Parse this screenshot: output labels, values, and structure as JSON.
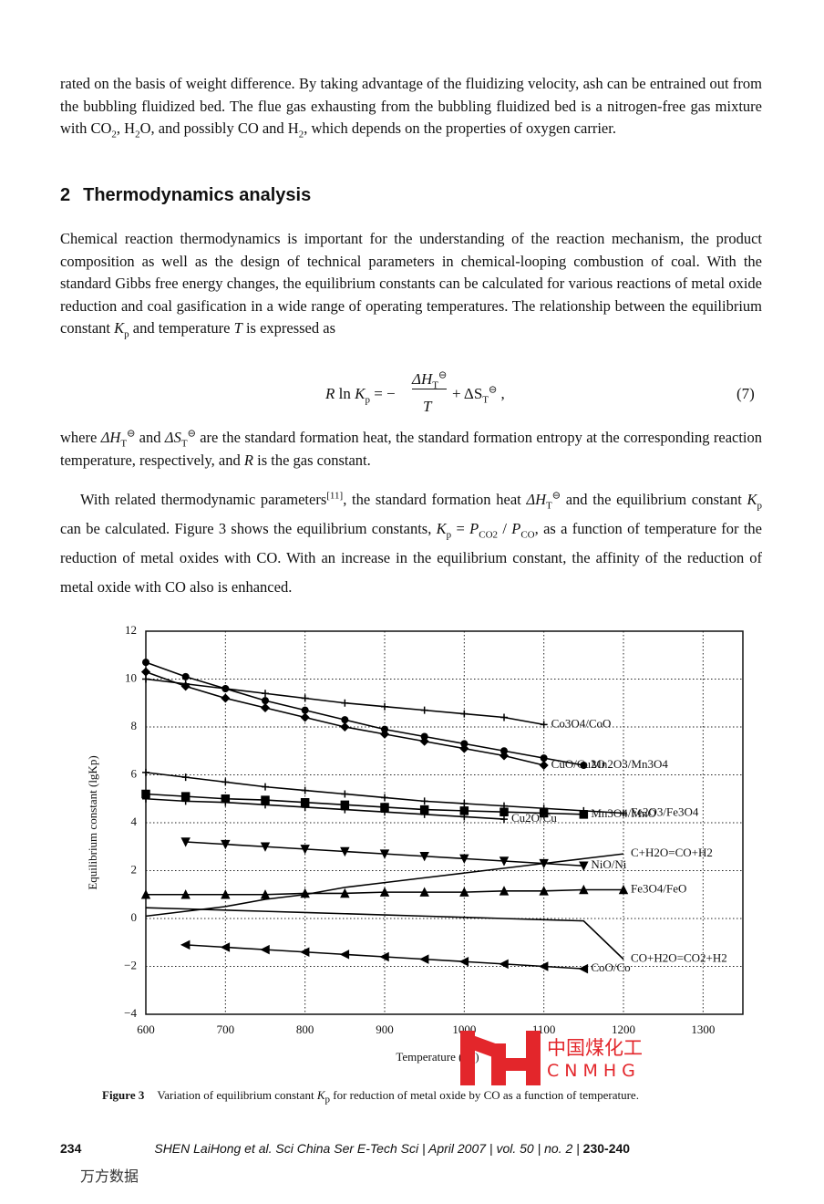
{
  "intro": [
    "rated on the basis of weight difference. By taking advantage of the fluidizing velocity, ash can be entrained out from the bubbling fluidized bed. The flue gas exhausting from the bubbling fluidized bed is a nitrogen-free gas mixture with CO",
    "2",
    ", H",
    "2",
    "O, and possibly CO and H",
    "2",
    ", which depends on the properties of oxygen carrier."
  ],
  "heading": {
    "number": "2",
    "title": "Thermodynamics analysis"
  },
  "p2": [
    "Chemical reaction thermodynamics is important for the understanding of the reaction mechanism, the product composition as well as the design of technical parameters in chemical-looping combustion of coal. With the standard Gibbs free energy changes, the equilibrium constants can be calculated for various reactions of metal oxide reduction and coal gasification in a wide range of operating temperatures. The relationship between the equilibrium constant ",
    "K",
    "p",
    " and temperature ",
    "T",
    " is expressed as"
  ],
  "equation": [
    "R",
    " ln ",
    "K",
    "p",
    " = −",
    "ΔH",
    "T",
    "⊖",
    "T",
    " + ΔS",
    "T",
    "⊖",
    " ,",
    "(7)"
  ],
  "p3": [
    "where ",
    "ΔH",
    "T",
    "⊖",
    " and ",
    "ΔS",
    "T",
    "⊖",
    " are the standard formation heat, the standard formation entropy at the corresponding reaction temperature, respectively, and ",
    "R",
    " is the gas constant."
  ],
  "p4": [
    "With related thermodynamic parameters",
    "[11]",
    ", the standard formation heat ",
    "ΔH",
    "T",
    "⊖",
    " and the equilibrium constant ",
    "K",
    "p",
    " can be calculated. Figure 3 shows the equilibrium constants, ",
    "K",
    "p",
    " = ",
    "P",
    "CO2",
    " / ",
    "P",
    "CO",
    ", as a function of temperature for the reduction of metal oxides with CO. With an increase in the equilibrium constant, the affinity of the reduction of metal oxide with CO also is enhanced."
  ],
  "chart_data": {
    "type": "line",
    "x_label": "Temperature (°C)",
    "y_label": "Equilibrium constant (lgKp)",
    "x": [
      600,
      650,
      700,
      750,
      800,
      850,
      900,
      950,
      1000,
      1050,
      1100,
      1150,
      1200
    ],
    "xlim": [
      600,
      1350
    ],
    "ylim": [
      -4,
      12
    ],
    "xticks": [
      600,
      700,
      800,
      900,
      1000,
      1100,
      1200,
      1300
    ],
    "yticks": [
      {
        "value": -4,
        "label": "−4"
      },
      {
        "value": -2,
        "label": "−2"
      },
      0,
      2,
      4,
      6,
      8,
      10,
      12
    ],
    "grid": true,
    "series": [
      {
        "name": "Co3O4/CoO",
        "color": "#000000",
        "marker": "+",
        "values": [
          10.0,
          9.8,
          9.6,
          9.4,
          9.2,
          9.0,
          8.85,
          8.7,
          8.55,
          8.4,
          8.1,
          null,
          null
        ]
      },
      {
        "name": "Mn2O3/Mn3O4",
        "color": "#000000",
        "marker": "o",
        "values": [
          10.7,
          10.1,
          9.6,
          9.1,
          8.7,
          8.3,
          7.9,
          7.6,
          7.3,
          7.0,
          6.7,
          6.4,
          null
        ]
      },
      {
        "name": "CuO/Cu2O",
        "color": "#000000",
        "marker": "d",
        "values": [
          10.3,
          9.7,
          9.2,
          8.8,
          8.4,
          8.0,
          7.7,
          7.4,
          7.1,
          6.8,
          6.4,
          null,
          null
        ]
      },
      {
        "name": "Fe2O3/Fe3O4",
        "color": "#000000",
        "marker": "+",
        "values": [
          6.1,
          5.9,
          5.7,
          5.5,
          5.35,
          5.2,
          5.05,
          4.9,
          4.8,
          4.7,
          4.6,
          4.5,
          4.4
        ]
      },
      {
        "name": "Mn3O4/MnO",
        "color": "#000000",
        "marker": "s",
        "values": [
          5.2,
          5.1,
          5.0,
          4.95,
          4.85,
          4.75,
          4.65,
          4.55,
          4.5,
          4.45,
          4.4,
          4.35,
          null
        ]
      },
      {
        "name": "Cu2O/Cu",
        "color": "#000000",
        "marker": "+",
        "values": [
          5.0,
          4.9,
          4.85,
          4.75,
          4.65,
          4.55,
          4.45,
          4.35,
          4.25,
          4.15,
          null,
          null,
          null
        ]
      },
      {
        "name": "NiO/Ni",
        "color": "#000000",
        "marker": "v",
        "values": [
          null,
          3.2,
          3.1,
          3.0,
          2.9,
          2.8,
          2.7,
          2.6,
          2.5,
          2.4,
          2.3,
          2.2,
          null
        ]
      },
      {
        "name": "C+H2O=CO+H2",
        "color": "#000000",
        "marker": "none",
        "values": [
          0.1,
          0.3,
          0.5,
          0.8,
          1.0,
          1.3,
          1.5,
          1.7,
          1.9,
          2.1,
          2.3,
          2.5,
          2.7
        ]
      },
      {
        "name": "Fe3O4/FeO",
        "color": "#000000",
        "marker": "^",
        "values": [
          1.0,
          1.0,
          1.0,
          1.0,
          1.05,
          1.05,
          1.1,
          1.1,
          1.1,
          1.15,
          1.15,
          1.2,
          1.2
        ]
      },
      {
        "name": "CO+H2O=CO2+H2",
        "color": "#000000",
        "marker": "none",
        "values": [
          0.45,
          0.4,
          0.35,
          0.3,
          0.25,
          0.2,
          0.15,
          0.1,
          0.05,
          0.0,
          -0.05,
          -0.1,
          -1.7
        ]
      },
      {
        "name": "CoO/Co",
        "color": "#000000",
        "marker": "<",
        "values": [
          null,
          -1.1,
          -1.2,
          -1.3,
          -1.4,
          -1.5,
          -1.6,
          -1.7,
          -1.8,
          -1.9,
          -2.0,
          -2.1,
          null
        ]
      }
    ]
  },
  "caption": [
    "Figure 3",
    "Variation of equilibrium constant ",
    "K",
    "p",
    " for reduction of metal oxide by CO as a function of temperature."
  ],
  "footer": {
    "page": "234",
    "citation": "SHEN LaiHong et al. Sci China Ser E-Tech Sci | April 2007 | vol. 50 | no. 2 | ",
    "pages": "230-240"
  },
  "watermark": "万方数据",
  "logo": {
    "cn": "中国煤化工",
    "en": "CNMHG"
  }
}
